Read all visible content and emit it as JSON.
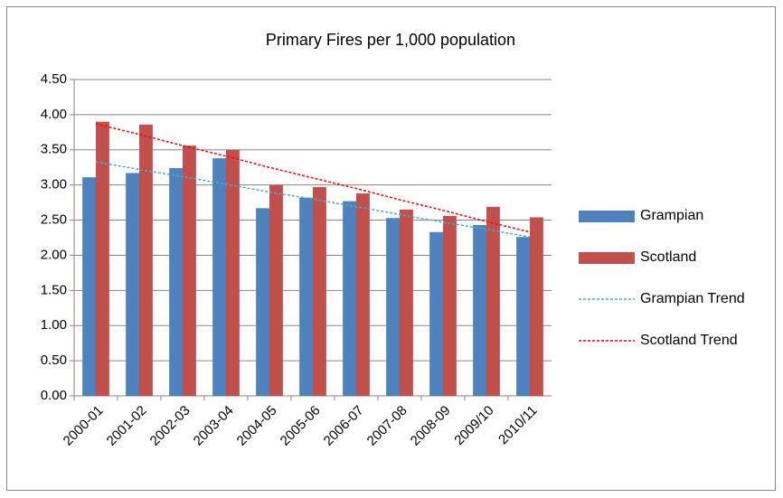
{
  "chart_data": {
    "type": "bar",
    "title": "Primary Fires per 1,000 population",
    "categories": [
      "2000-01",
      "2001-02",
      "2002-03",
      "2003-04",
      "2004-05",
      "2005-06",
      "2006-07",
      "2007-08",
      "2008-09",
      "2009/10",
      "2010/11"
    ],
    "series": [
      {
        "name": "Grampian",
        "type": "bar",
        "color": "#4f81bd",
        "values": [
          3.11,
          3.17,
          3.24,
          3.38,
          2.67,
          2.82,
          2.77,
          2.53,
          2.33,
          2.43,
          2.26
        ]
      },
      {
        "name": "Scotland",
        "type": "bar",
        "color": "#c0504d",
        "values": [
          3.9,
          3.86,
          3.56,
          3.5,
          3.0,
          2.97,
          2.88,
          2.65,
          2.56,
          2.69,
          2.54
        ]
      },
      {
        "name": "Grampian Trend",
        "type": "line",
        "dashed": true,
        "color": "#4bacc6",
        "values": [
          3.33,
          3.22,
          3.12,
          3.01,
          2.9,
          2.8,
          2.69,
          2.58,
          2.47,
          2.37,
          2.26
        ]
      },
      {
        "name": "Scotland Trend",
        "type": "line",
        "dashed": true,
        "color": "#ff0000",
        "values": [
          3.87,
          3.72,
          3.56,
          3.41,
          3.25,
          3.1,
          2.95,
          2.79,
          2.64,
          2.48,
          2.33
        ]
      }
    ],
    "ylim": [
      0,
      4.5
    ],
    "yticks": [
      {
        "value": 0,
        "label": "0.00"
      },
      {
        "value": 0.5,
        "label": "0.50"
      },
      {
        "value": 1,
        "label": "1.00"
      },
      {
        "value": 1.5,
        "label": "1.50"
      },
      {
        "value": 2,
        "label": "2.00"
      },
      {
        "value": 2.5,
        "label": "2.50"
      },
      {
        "value": 3,
        "label": "3.00"
      },
      {
        "value": 3.5,
        "label": "3.50"
      },
      {
        "value": 4,
        "label": "4.00"
      },
      {
        "value": 4.5,
        "label": "4.50"
      }
    ],
    "grid": true,
    "legend": "right"
  }
}
